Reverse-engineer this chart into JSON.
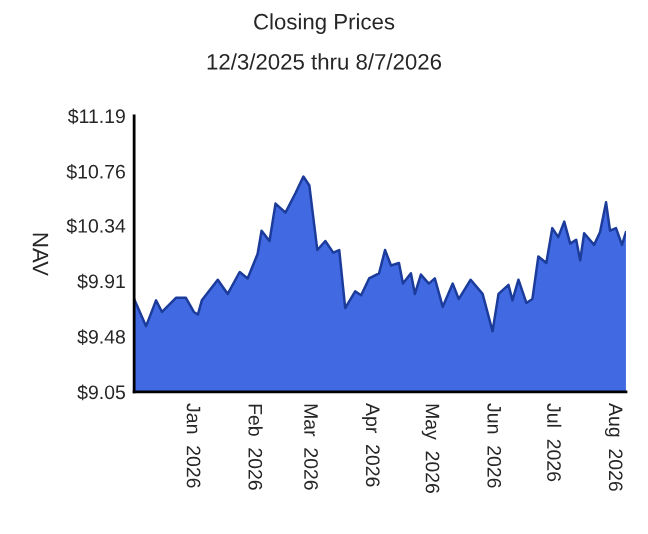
{
  "chart_data": {
    "type": "area",
    "title": "Closing Prices",
    "subtitle": "12/3/2025 thru 8/7/2026",
    "ylabel": "NAV",
    "x": [
      "2025-12-03",
      "2025-12-09",
      "2025-12-14",
      "2025-12-17",
      "2025-12-24",
      "2025-12-29",
      "2026-01-02",
      "2026-01-04",
      "2026-01-06",
      "2026-01-14",
      "2026-01-19",
      "2026-01-25",
      "2026-01-29",
      "2026-02-03",
      "2026-02-05",
      "2026-02-09",
      "2026-02-12",
      "2026-02-17",
      "2026-02-22",
      "2026-02-26",
      "2026-03-01",
      "2026-03-05",
      "2026-03-09",
      "2026-03-13",
      "2026-03-16",
      "2026-03-19",
      "2026-03-24",
      "2026-03-27",
      "2026-03-31",
      "2026-04-05",
      "2026-04-08",
      "2026-04-11",
      "2026-04-15",
      "2026-04-17",
      "2026-04-21",
      "2026-04-23",
      "2026-04-26",
      "2026-04-30",
      "2026-05-03",
      "2026-05-07",
      "2026-05-12",
      "2026-05-15",
      "2026-05-21",
      "2026-05-27",
      "2026-06-01",
      "2026-06-04",
      "2026-06-09",
      "2026-06-11",
      "2026-06-14",
      "2026-06-18",
      "2026-06-21",
      "2026-06-24",
      "2026-06-28",
      "2026-07-01",
      "2026-07-04",
      "2026-07-07",
      "2026-07-10",
      "2026-07-13",
      "2026-07-15",
      "2026-07-17",
      "2026-07-22",
      "2026-07-25",
      "2026-07-28",
      "2026-07-30",
      "2026-08-02",
      "2026-08-05",
      "2026-08-07"
    ],
    "series": [
      {
        "color": "#4169e1",
        "values": [
          9.77,
          9.56,
          9.76,
          9.67,
          9.78,
          9.78,
          9.67,
          9.65,
          9.76,
          9.92,
          9.81,
          9.98,
          9.93,
          10.12,
          10.3,
          10.22,
          10.51,
          10.44,
          10.59,
          10.72,
          10.65,
          10.15,
          10.22,
          10.13,
          10.15,
          9.7,
          9.83,
          9.8,
          9.93,
          9.97,
          10.15,
          10.03,
          10.05,
          9.89,
          9.97,
          9.81,
          9.96,
          9.89,
          9.93,
          9.71,
          9.89,
          9.77,
          9.92,
          9.81,
          9.52,
          9.81,
          9.88,
          9.76,
          9.92,
          9.74,
          9.77,
          10.1,
          10.05,
          10.32,
          10.25,
          10.37,
          10.2,
          10.23,
          10.07,
          10.28,
          10.19,
          10.29,
          10.52,
          10.3,
          10.32,
          10.19,
          10.29
        ]
      }
    ],
    "xlim": [
      "2025-12-03",
      "2026-08-07"
    ],
    "xticks": [
      {
        "value": "2026-01-01",
        "label": "Jan  2026"
      },
      {
        "value": "2026-02-01",
        "label": "Feb  2026"
      },
      {
        "value": "2026-03-01",
        "label": "Mar  2026"
      },
      {
        "value": "2026-04-01",
        "label": "Apr  2026"
      },
      {
        "value": "2026-05-01",
        "label": "May  2026"
      },
      {
        "value": "2026-06-01",
        "label": "Jun  2026"
      },
      {
        "value": "2026-07-01",
        "label": "Jul  2026"
      },
      {
        "value": "2026-08-01",
        "label": "Aug  2026"
      }
    ],
    "ylim": [
      9.05,
      11.19
    ],
    "yticks": [
      {
        "value": 9.05,
        "label": "$9.05"
      },
      {
        "value": 9.48,
        "label": "$9.48"
      },
      {
        "value": 9.91,
        "label": "$9.91"
      },
      {
        "value": 10.34,
        "label": "$10.34"
      },
      {
        "value": 10.76,
        "label": "$10.76"
      },
      {
        "value": 11.19,
        "label": "$11.19"
      }
    ],
    "grid": false,
    "legend": false
  }
}
